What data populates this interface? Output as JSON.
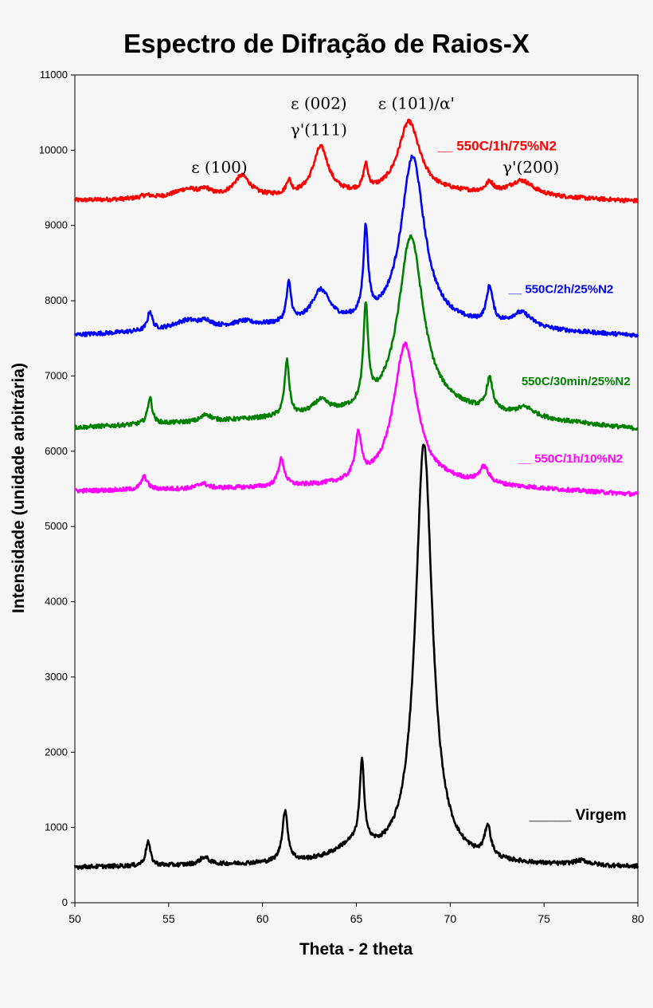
{
  "chart_data": {
    "type": "line",
    "title": "Espectro de Difração de Raios-X",
    "xlabel": "Theta - 2 theta",
    "ylabel": "Intensidade (unidade arbitrária)",
    "xlim": [
      50,
      80
    ],
    "ylim": [
      0,
      11000
    ],
    "x_ticks": [
      "50",
      "55",
      "60",
      "65",
      "70",
      "75",
      "80"
    ],
    "y_ticks": [
      "0",
      "1000",
      "2000",
      "3000",
      "4000",
      "5000",
      "6000",
      "7000",
      "8000",
      "9000",
      "10000",
      "11000"
    ],
    "grid": false,
    "legend": "inline labels on right side",
    "annotations": [
      {
        "text": "ε (100)",
        "x": 57.7,
        "y": 9700
      },
      {
        "text": "ε (002)",
        "x": 63.0,
        "y": 10550
      },
      {
        "text": "γ'(111)",
        "x": 63.0,
        "y": 10200
      },
      {
        "text": "ε (101)/α'",
        "x": 68.2,
        "y": 10550
      },
      {
        "text": "γ'(200)",
        "x": 74.3,
        "y": 9700
      }
    ],
    "series": [
      {
        "name": "550C/1h/75%N2",
        "color": "#ff0000",
        "baseline": [
          [
            50,
            9330
          ],
          [
            60,
            9360
          ],
          [
            70,
            9420
          ],
          [
            80,
            9320
          ]
        ],
        "peaks": [
          [
            53.8,
            40,
            0.4
          ],
          [
            56.0,
            120,
            0.9
          ],
          [
            57.0,
            70,
            0.3
          ],
          [
            58.9,
            280,
            0.55
          ],
          [
            61.4,
            180,
            0.15
          ],
          [
            63.1,
            640,
            0.5
          ],
          [
            65.5,
            330,
            0.15
          ],
          [
            67.8,
            960,
            0.7
          ],
          [
            72.1,
            130,
            0.25
          ],
          [
            73.8,
            200,
            0.8
          ]
        ],
        "points": [
          [
            50,
            9330
          ],
          [
            53.8,
            9370
          ],
          [
            56.0,
            9490
          ],
          [
            57.0,
            9460
          ],
          [
            58.9,
            9660
          ],
          [
            60.5,
            9380
          ],
          [
            61.4,
            9560
          ],
          [
            62.1,
            9420
          ],
          [
            63.1,
            10000
          ],
          [
            64.3,
            9450
          ],
          [
            65.5,
            9720
          ],
          [
            66.1,
            9620
          ],
          [
            67.8,
            10420
          ],
          [
            69.5,
            9900
          ],
          [
            70.5,
            9550
          ],
          [
            72.1,
            9600
          ],
          [
            73.8,
            9580
          ],
          [
            76.0,
            9400
          ],
          [
            80,
            9320
          ]
        ]
      },
      {
        "name": "550C/2h/25%N2",
        "color": "#0000ff",
        "baseline": [
          [
            50,
            7540
          ],
          [
            60,
            7650
          ],
          [
            70,
            7650
          ],
          [
            80,
            7530
          ]
        ],
        "peaks": [
          [
            54.0,
            250,
            0.15
          ],
          [
            56.0,
            120,
            0.9
          ],
          [
            57.0,
            70,
            0.3
          ],
          [
            59.0,
            60,
            0.6
          ],
          [
            61.4,
            520,
            0.15
          ],
          [
            63.1,
            440,
            0.6
          ],
          [
            65.5,
            1160,
            0.15
          ],
          [
            68.0,
            2250,
            0.75
          ],
          [
            72.1,
            480,
            0.2
          ],
          [
            73.8,
            200,
            0.7
          ]
        ],
        "points": [
          [
            50,
            7540
          ],
          [
            54.0,
            7800
          ],
          [
            56.0,
            7710
          ],
          [
            57.0,
            7730
          ],
          [
            59.0,
            7710
          ],
          [
            61.4,
            8180
          ],
          [
            62.1,
            7800
          ],
          [
            63.1,
            8120
          ],
          [
            64.5,
            7780
          ],
          [
            65.5,
            8790
          ],
          [
            66.3,
            8250
          ],
          [
            68.0,
            9990
          ],
          [
            69.5,
            8650
          ],
          [
            71.0,
            7860
          ],
          [
            72.1,
            8180
          ],
          [
            73.8,
            7830
          ],
          [
            76.0,
            7600
          ],
          [
            80,
            7530
          ]
        ]
      },
      {
        "name": "550C/30min/25%N2",
        "color": "#008000",
        "baseline": [
          [
            50,
            6310
          ],
          [
            60,
            6420
          ],
          [
            70,
            6520
          ],
          [
            80,
            6290
          ]
        ],
        "peaks": [
          [
            54.0,
            350,
            0.15
          ],
          [
            57.0,
            90,
            0.3
          ],
          [
            61.3,
            730,
            0.15
          ],
          [
            63.1,
            170,
            0.5
          ],
          [
            65.5,
            1280,
            0.15
          ],
          [
            67.9,
            2350,
            0.8
          ],
          [
            72.1,
            420,
            0.2
          ],
          [
            74.0,
            120,
            0.6
          ]
        ],
        "points": [
          [
            50,
            6310
          ],
          [
            54.0,
            6690
          ],
          [
            57.0,
            6480
          ],
          [
            61.3,
            7130
          ],
          [
            62.1,
            6520
          ],
          [
            63.1,
            6600
          ],
          [
            64.5,
            6560
          ],
          [
            65.5,
            7730
          ],
          [
            66.3,
            7000
          ],
          [
            67.9,
            8800
          ],
          [
            69.5,
            7400
          ],
          [
            71.0,
            6700
          ],
          [
            72.1,
            6920
          ],
          [
            74.0,
            6500
          ],
          [
            77.0,
            6350
          ],
          [
            80,
            6290
          ]
        ]
      },
      {
        "name": "550C/1h/10%N2",
        "color": "#ff00ff",
        "baseline": [
          [
            50,
            5470
          ],
          [
            60,
            5510
          ],
          [
            70,
            5560
          ],
          [
            80,
            5420
          ]
        ],
        "peaks": [
          [
            53.7,
            170,
            0.2
          ],
          [
            56.8,
            70,
            0.3
          ],
          [
            61.0,
            360,
            0.2
          ],
          [
            65.1,
            590,
            0.2
          ],
          [
            67.6,
            1870,
            0.75
          ],
          [
            71.8,
            210,
            0.3
          ]
        ],
        "points": [
          [
            50,
            5470
          ],
          [
            53.7,
            5640
          ],
          [
            56.8,
            5570
          ],
          [
            61.0,
            5880
          ],
          [
            62.0,
            5520
          ],
          [
            65.1,
            6110
          ],
          [
            66.0,
            5700
          ],
          [
            67.6,
            7430
          ],
          [
            69.2,
            6200
          ],
          [
            70.5,
            5620
          ],
          [
            71.8,
            5770
          ],
          [
            73.0,
            5500
          ],
          [
            80,
            5420
          ]
        ]
      },
      {
        "name": "Virgem",
        "color": "#000000",
        "baseline": [
          [
            50,
            470
          ],
          [
            60,
            500
          ],
          [
            70,
            500
          ],
          [
            80,
            470
          ]
        ],
        "peaks": [
          [
            53.9,
            320,
            0.15
          ],
          [
            56.9,
            100,
            0.3
          ],
          [
            61.2,
            670,
            0.18
          ],
          [
            64.8,
            200,
            1.2
          ],
          [
            65.3,
            1080,
            0.15
          ],
          [
            68.6,
            5580,
            0.55
          ],
          [
            72.0,
            410,
            0.2
          ],
          [
            77.0,
            60,
            0.5
          ]
        ],
        "points": [
          [
            50,
            470
          ],
          [
            53.9,
            790
          ],
          [
            56.9,
            580
          ],
          [
            61.2,
            1170
          ],
          [
            62.5,
            580
          ],
          [
            65.3,
            1640
          ],
          [
            66.3,
            800
          ],
          [
            67.5,
            1650
          ],
          [
            68.6,
            6080
          ],
          [
            69.8,
            1500
          ],
          [
            71.0,
            600
          ],
          [
            72.0,
            910
          ],
          [
            73.5,
            510
          ],
          [
            77.0,
            540
          ],
          [
            80,
            470
          ]
        ]
      }
    ],
    "legend_labels": [
      {
        "series": 0,
        "prefix": "__ ",
        "label": "550C/1h/75%N2",
        "x": 72.5,
        "y": 10000
      },
      {
        "series": 1,
        "prefix": "__ ",
        "label": "550C/2h/25%N2",
        "x": 75.9,
        "y": 8100
      },
      {
        "series": 2,
        "prefix": "",
        "label": "550C/30min/25%N2",
        "x": 76.7,
        "y": 6880
      },
      {
        "series": 3,
        "prefix": "__ ",
        "label": "550C/1h/10%N2",
        "x": 76.4,
        "y": 5850
      },
      {
        "series": 4,
        "prefix": "_____ ",
        "label": "Virgem",
        "x": 76.8,
        "y": 1100
      }
    ]
  }
}
